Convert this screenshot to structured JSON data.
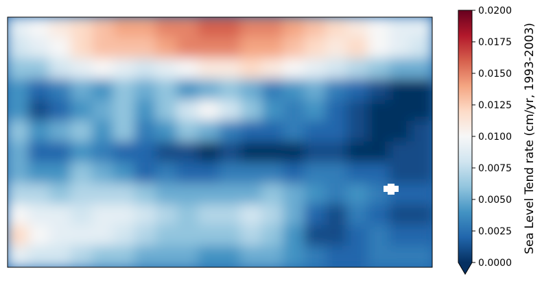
{
  "chart_data": {
    "type": "heatmap",
    "title": "",
    "xlabel": "",
    "ylabel": "",
    "colormap": "RdBu_r",
    "extend": "min",
    "colorbar": {
      "label": "Sea Level Tend rate (cm/yr, 1993-2003)",
      "range": [
        0.0,
        0.02
      ],
      "ticks": [
        "0.0000",
        "0.0025",
        "0.0050",
        "0.0075",
        "0.0100",
        "0.0125",
        "0.0150",
        "0.0175",
        "0.0200"
      ]
    },
    "grid_rows_top_to_bottom": [
      [
        0.009,
        0.01,
        0.011,
        0.012,
        0.013,
        0.014,
        0.014,
        0.015,
        0.015,
        0.016,
        0.016,
        0.015,
        0.015,
        0.014,
        0.013,
        0.012,
        0.011,
        0.01,
        0.009,
        0.009
      ],
      [
        0.008,
        0.009,
        0.01,
        0.012,
        0.013,
        0.013,
        0.013,
        0.014,
        0.015,
        0.015,
        0.015,
        0.014,
        0.014,
        0.013,
        0.012,
        0.011,
        0.012,
        0.01,
        0.009,
        0.008
      ],
      [
        0.006,
        0.006,
        0.008,
        0.009,
        0.01,
        0.009,
        0.008,
        0.009,
        0.01,
        0.011,
        0.011,
        0.012,
        0.011,
        0.01,
        0.009,
        0.008,
        0.007,
        0.006,
        0.005,
        0.005
      ],
      [
        0.004,
        0.002,
        0.003,
        0.005,
        0.004,
        0.006,
        0.005,
        0.006,
        0.004,
        0.005,
        0.006,
        0.005,
        0.003,
        0.004,
        0.005,
        0.003,
        0.002,
        0.001,
        0.0,
        0.0
      ],
      [
        0.004,
        0.001,
        0.002,
        0.004,
        0.005,
        0.006,
        0.004,
        0.006,
        0.008,
        0.01,
        0.008,
        0.006,
        0.004,
        0.003,
        0.004,
        0.002,
        0.001,
        0.0,
        0.0,
        0.0
      ],
      [
        0.006,
        0.004,
        0.005,
        0.006,
        0.004,
        0.006,
        0.003,
        0.004,
        0.006,
        0.005,
        0.003,
        0.002,
        0.002,
        0.003,
        0.002,
        0.002,
        0.001,
        0.0,
        0.0,
        0.001
      ],
      [
        0.005,
        0.002,
        0.002,
        0.004,
        0.003,
        0.002,
        0.002,
        0.001,
        0.001,
        0.0,
        0.001,
        0.0,
        0.0,
        0.0,
        0.001,
        0.001,
        0.0,
        0.0,
        0.001,
        0.001
      ],
      [
        0.005,
        0.004,
        0.004,
        0.006,
        0.005,
        0.004,
        0.002,
        0.003,
        0.002,
        0.002,
        0.003,
        0.003,
        0.003,
        0.002,
        0.003,
        0.003,
        0.002,
        0.002,
        0.001,
        0.001
      ],
      [
        0.007,
        0.007,
        0.006,
        0.007,
        0.007,
        0.007,
        0.006,
        0.005,
        0.005,
        0.005,
        0.005,
        0.005,
        0.006,
        0.005,
        0.004,
        0.003,
        0.004,
        0.003,
        0.002,
        0.002
      ],
      [
        0.01,
        0.009,
        0.009,
        0.008,
        0.009,
        0.009,
        0.008,
        0.007,
        0.006,
        0.007,
        0.007,
        0.008,
        0.007,
        0.005,
        0.002,
        0.001,
        0.003,
        0.002,
        0.001,
        0.001
      ],
      [
        0.012,
        0.01,
        0.009,
        0.009,
        0.009,
        0.008,
        0.007,
        0.006,
        0.006,
        0.006,
        0.006,
        0.007,
        0.006,
        0.004,
        0.001,
        0.001,
        0.002,
        0.003,
        0.002,
        0.002
      ],
      [
        0.009,
        0.008,
        0.008,
        0.007,
        0.006,
        0.006,
        0.005,
        0.005,
        0.005,
        0.004,
        0.004,
        0.005,
        0.005,
        0.004,
        0.003,
        0.002,
        0.002,
        0.003,
        0.003,
        0.003
      ]
    ]
  }
}
